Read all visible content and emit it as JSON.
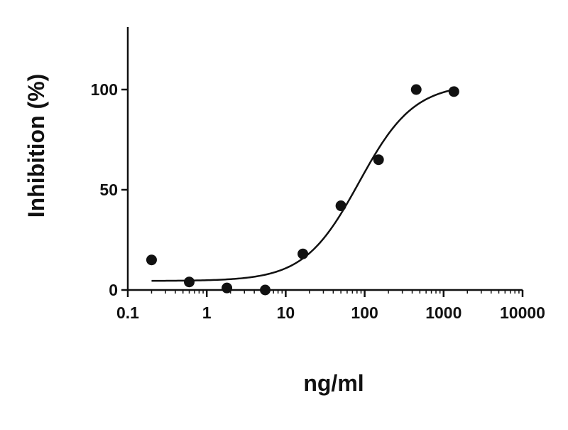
{
  "chart_data": {
    "type": "scatter",
    "title": "",
    "xlabel": "ng/ml",
    "ylabel": "Inhibition (%)",
    "xscale": "log",
    "xlim": [
      0.1,
      10000
    ],
    "ylim": [
      0,
      130
    ],
    "grid": false,
    "x_ticks": [
      0.1,
      1,
      10,
      100,
      1000,
      10000
    ],
    "x_tick_labels": [
      "0.1",
      "1",
      "10",
      "100",
      "1000",
      "10000"
    ],
    "y_ticks": [
      0,
      50,
      100
    ],
    "y_tick_labels": [
      "0",
      "50",
      "100"
    ],
    "series": [
      {
        "points": [
          {
            "x": 0.2,
            "y": 15
          },
          {
            "x": 0.6,
            "y": 4
          },
          {
            "x": 1.8,
            "y": 1
          },
          {
            "x": 5.5,
            "y": 0
          },
          {
            "x": 16.5,
            "y": 18
          },
          {
            "x": 50,
            "y": 42
          },
          {
            "x": 150,
            "y": 65
          },
          {
            "x": 450,
            "y": 100
          },
          {
            "x": 1350,
            "y": 99
          }
        ],
        "fit": {
          "model": "four-parameter logistic",
          "bottom": 4.5,
          "top": 103,
          "ec50": 85,
          "hill": 1.25,
          "x_range": [
            0.2,
            1350
          ]
        },
        "color": "#111111"
      }
    ]
  }
}
